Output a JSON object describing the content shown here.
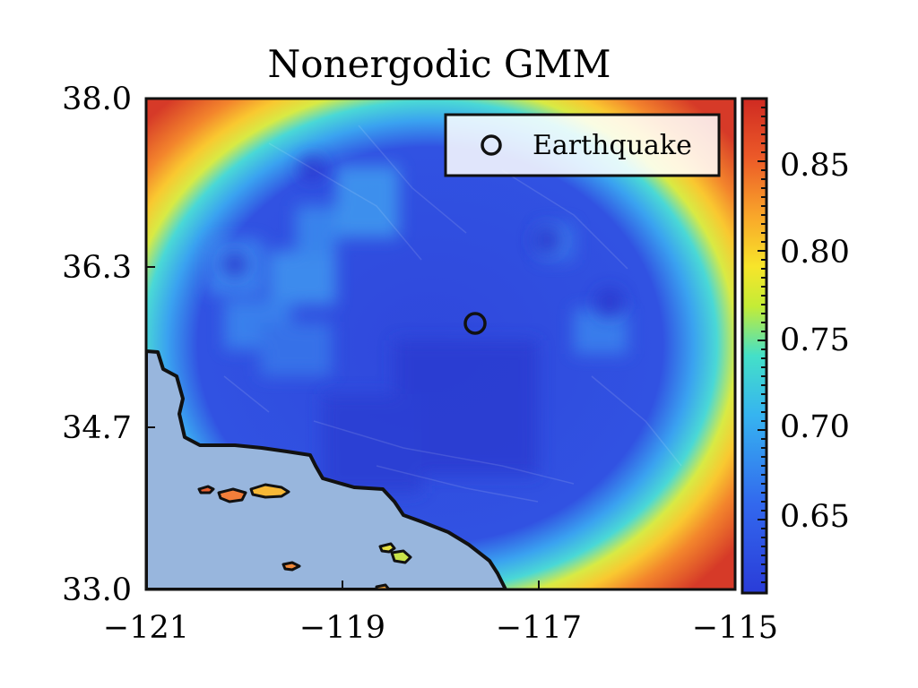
{
  "title": "Nonergodic GMM",
  "map": {
    "x_ticks": [
      "−121",
      "−119",
      "−117",
      "−115"
    ],
    "y_ticks": [
      "38.0",
      "36.3",
      "34.7",
      "33.0"
    ],
    "x_range": [
      -121,
      -115
    ],
    "y_range": [
      33.0,
      38.0
    ],
    "basemap": "shaded-relief with ocean and coastline",
    "ocean_color": "#98b6dd",
    "earthquake": {
      "lon": -117.6,
      "lat": 35.77,
      "marker": "open-circle"
    }
  },
  "legend": {
    "label": "Earthquake"
  },
  "colorbar": {
    "ticks": [
      "0.85",
      "0.80",
      "0.75",
      "0.70",
      "0.65"
    ],
    "range": [
      0.6,
      0.89
    ],
    "colors": [
      "#2a3cd8",
      "#3268ee",
      "#36b4f0",
      "#44e0c8",
      "#c4ec36",
      "#f7e52a",
      "#f9a82a",
      "#ec5a28",
      "#cf2a22"
    ]
  },
  "chart_data": {
    "type": "heatmap",
    "title": "Nonergodic GMM",
    "xlim": [
      -121,
      -115
    ],
    "ylim": [
      33.0,
      38.0
    ],
    "color_range": [
      0.6,
      0.89
    ],
    "points": [
      {
        "name": "Earthquake",
        "x": -117.6,
        "y": 35.77
      }
    ]
  }
}
